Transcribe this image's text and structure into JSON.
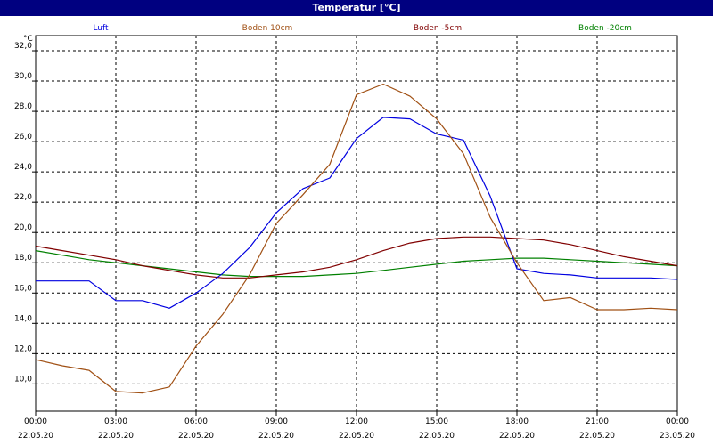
{
  "window": {
    "title": "Temperatur [°C]"
  },
  "chart_data": {
    "type": "line",
    "title": "Temperatur [°C]",
    "ylabel": "°C",
    "ylim": [
      8.2,
      33.0
    ],
    "xlim": [
      "22.05.20 00:00",
      "23.05.20 00:00"
    ],
    "grid": true,
    "legend": "top",
    "y_ticks": [
      "10,0",
      "12,0",
      "14,0",
      "16,0",
      "18,0",
      "20,0",
      "22,0",
      "24,0",
      "26,0",
      "28,0",
      "30,0",
      "32,0"
    ],
    "x_ticks": [
      {
        "time": "00:00",
        "date": "22.05.20"
      },
      {
        "time": "03:00",
        "date": "22.05.20"
      },
      {
        "time": "06:00",
        "date": "22.05.20"
      },
      {
        "time": "09:00",
        "date": "22.05.20"
      },
      {
        "time": "12:00",
        "date": "22.05.20"
      },
      {
        "time": "15:00",
        "date": "22.05.20"
      },
      {
        "time": "18:00",
        "date": "22.05.20"
      },
      {
        "time": "21:00",
        "date": "22.05.20"
      },
      {
        "time": "00:00",
        "date": "23.05.20"
      }
    ],
    "x_hours": [
      0,
      1,
      2,
      3,
      4,
      5,
      6,
      7,
      8,
      9,
      10,
      11,
      12,
      13,
      14,
      15,
      16,
      17,
      18,
      19,
      20,
      21,
      22,
      23,
      24
    ],
    "series": [
      {
        "name": "Luft",
        "color": "#0000e0",
        "values": [
          16.8,
          16.8,
          16.8,
          15.5,
          15.5,
          15.0,
          16.0,
          17.3,
          19.0,
          21.3,
          22.9,
          23.6,
          26.2,
          27.6,
          27.5,
          26.5,
          26.1,
          22.4,
          17.6,
          17.3,
          17.2,
          17.0,
          17.0,
          17.0,
          16.9
        ]
      },
      {
        "name": "Boden 10cm",
        "color": "#a05014",
        "values": [
          11.6,
          11.2,
          10.9,
          9.5,
          9.4,
          9.8,
          12.5,
          14.6,
          17.2,
          20.6,
          22.5,
          24.5,
          29.1,
          29.8,
          29.0,
          27.5,
          25.2,
          21.0,
          18.0,
          15.5,
          15.7,
          14.9,
          14.9,
          15.0,
          14.9
        ]
      },
      {
        "name": "Boden -5cm",
        "color": "#800000",
        "values": [
          19.1,
          18.8,
          18.5,
          18.2,
          17.8,
          17.5,
          17.2,
          17.0,
          17.0,
          17.2,
          17.4,
          17.7,
          18.2,
          18.8,
          19.3,
          19.6,
          19.7,
          19.7,
          19.6,
          19.5,
          19.2,
          18.8,
          18.4,
          18.1,
          17.8
        ]
      },
      {
        "name": "Boden -20cm",
        "color": "#008000",
        "values": [
          18.8,
          18.5,
          18.2,
          18.0,
          17.8,
          17.6,
          17.4,
          17.2,
          17.1,
          17.1,
          17.1,
          17.2,
          17.3,
          17.5,
          17.7,
          17.9,
          18.1,
          18.2,
          18.3,
          18.3,
          18.2,
          18.1,
          18.0,
          17.9,
          17.8
        ]
      }
    ]
  }
}
